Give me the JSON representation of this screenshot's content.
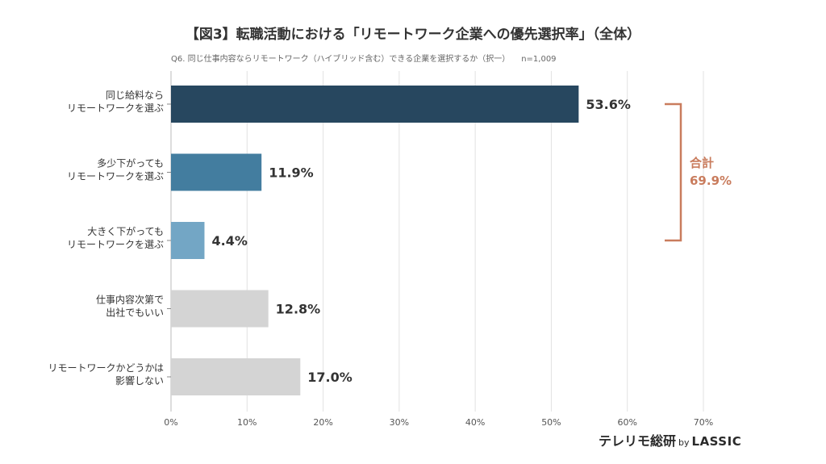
{
  "title": "【図3】転職活動における「リモートワーク企業への優先選択率」（全体）",
  "subtitle": "Q6. 同じ仕事内容ならリモートワーク（ハイブリッド含む）できる企業を選択するか（択一）",
  "sample_size": "n=1,009",
  "brand": {
    "name": "テレリモ総研",
    "by": "by",
    "company": "LASSIC"
  },
  "bracket": {
    "label": "合計",
    "value": "69.9%",
    "color": "#c97c5d"
  },
  "colors": {
    "dark_blue": "#27475f",
    "mid_blue": "#437d9f",
    "light_blue": "#73a6c5",
    "gray": "#d4d4d4",
    "grid": "#e2e2e2",
    "axis": "#bbbbbb"
  },
  "chart_data": {
    "type": "bar",
    "orientation": "horizontal",
    "categories": [
      [
        "同じ給料なら",
        "リモートワークを選ぶ"
      ],
      [
        "多少下がっても",
        "リモートワークを選ぶ"
      ],
      [
        "大きく下がっても",
        "リモートワークを選ぶ"
      ],
      [
        "仕事内容次第で",
        "出社でもいい"
      ],
      [
        "リモートワークかどうかは",
        "影響しない"
      ]
    ],
    "values": [
      53.6,
      11.9,
      4.4,
      12.8,
      17.0
    ],
    "value_labels": [
      "53.6%",
      "11.9%",
      "4.4%",
      "12.8%",
      "17.0%"
    ],
    "bar_colors": [
      "#27475f",
      "#437d9f",
      "#73a6c5",
      "#d4d4d4",
      "#d4d4d4"
    ],
    "xlim": [
      0,
      70
    ],
    "xticks": [
      0,
      10,
      20,
      30,
      40,
      50,
      60,
      70
    ],
    "xtick_labels": [
      "0%",
      "10%",
      "20%",
      "30%",
      "40%",
      "50%",
      "60%",
      "70%"
    ],
    "grid": true,
    "xlabel": "",
    "ylabel": ""
  }
}
